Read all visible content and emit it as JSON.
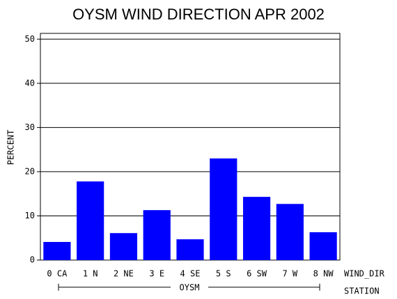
{
  "chart_data": {
    "type": "bar",
    "title": "OYSM WIND DIRECTION APR 2002",
    "y_label": "PERCENT",
    "x_label": "WIND_DIR",
    "group": "OYSM",
    "group_label": "STATION",
    "categories": [
      "0 CA",
      "1 N",
      "2 NE",
      "3 E",
      "4 SE",
      "5 S",
      "6 SW",
      "7 W",
      "8 NW"
    ],
    "values": [
      4.1,
      17.8,
      6.1,
      11.3,
      4.7,
      23.0,
      14.3,
      12.7,
      6.3
    ],
    "color": "#0000ff",
    "ylim": [
      0,
      51.3
    ],
    "yticks": [
      0,
      10,
      20,
      30,
      40,
      50
    ],
    "grid": true
  }
}
